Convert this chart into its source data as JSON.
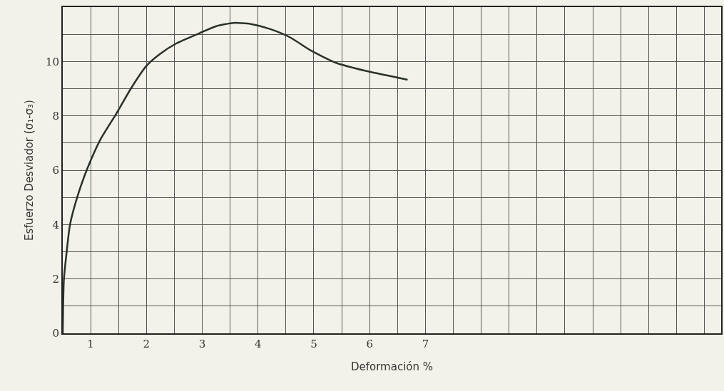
{
  "chart_data": {
    "type": "line",
    "xlabel": "Deformación %",
    "ylabel": "Esfuerzo Desviador (σ₁-σ₃)",
    "x": [
      0.5,
      0.52,
      0.57,
      0.63,
      0.77,
      0.95,
      1.18,
      1.46,
      1.72,
      2.0,
      2.23,
      2.54,
      2.95,
      3.25,
      3.56,
      3.87,
      4.22,
      4.58,
      4.94,
      5.4,
      5.96,
      6.68
    ],
    "series": [
      {
        "color": "#2b302b",
        "values": [
          0,
          1.97,
          3.0,
          4.0,
          5.08,
          6.11,
          7.15,
          8.08,
          9.0,
          9.84,
          10.26,
          10.67,
          11.04,
          11.3,
          11.42,
          11.38,
          11.19,
          10.88,
          10.41,
          9.95,
          9.64,
          9.33
        ]
      }
    ],
    "xlim": [
      0.5,
      12.3
    ],
    "xticks": [
      1,
      {
        "value": 1.5,
        "label": null
      },
      2,
      {
        "value": 2.5,
        "label": null
      },
      3,
      {
        "value": 3.5,
        "label": null
      },
      4,
      {
        "value": 4.5,
        "label": null
      },
      5,
      {
        "value": 5.5,
        "label": null
      },
      6,
      {
        "value": 6.5,
        "label": null
      },
      7,
      {
        "value": 7.5,
        "label": null
      },
      {
        "value": 8,
        "label": null
      },
      {
        "value": 8.5,
        "label": null
      },
      {
        "value": 9,
        "label": null
      },
      {
        "value": 9.5,
        "label": null
      },
      {
        "value": 10,
        "label": null
      },
      {
        "value": 10.5,
        "label": null
      },
      {
        "value": 11,
        "label": null
      },
      {
        "value": 11.5,
        "label": null
      },
      {
        "value": 12,
        "label": null
      }
    ],
    "ylim": [
      0,
      12
    ],
    "yticks": [
      0,
      {
        "value": 1,
        "label": null
      },
      2,
      {
        "value": 3,
        "label": null
      },
      4,
      {
        "value": 5,
        "label": null
      },
      6,
      {
        "value": 7,
        "label": null
      },
      8,
      {
        "value": 9,
        "label": null
      },
      10,
      {
        "value": 11,
        "label": null
      }
    ],
    "grid": true,
    "marker": "none",
    "line_style": "solid"
  }
}
